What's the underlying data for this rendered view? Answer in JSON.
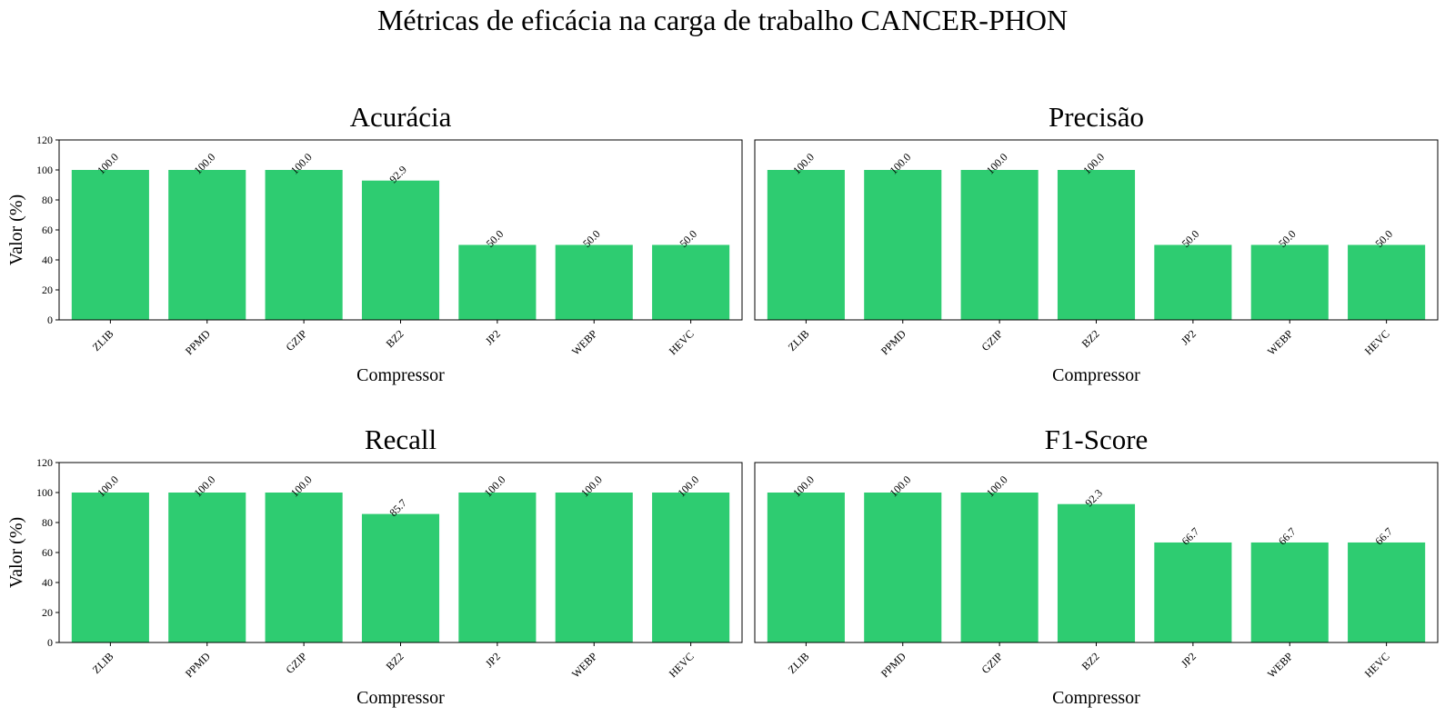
{
  "suptitle": "Métricas de eficácia na carga de trabalho CANCER-PHON",
  "bar_color": "#2ecc71",
  "chart_data": [
    {
      "type": "bar",
      "title": "Acurácia",
      "xlabel": "Compressor",
      "ylabel": "Valor (%)",
      "ylim": [
        0,
        120
      ],
      "yticks": [
        0,
        20,
        40,
        60,
        80,
        100,
        120
      ],
      "categories": [
        "ZLIB",
        "PPMD",
        "GZIP",
        "BZ2",
        "JP2",
        "WEBP",
        "HEVC"
      ],
      "values": [
        100.0,
        100.0,
        100.0,
        92.9,
        50.0,
        50.0,
        50.0
      ],
      "labels": [
        "100.0",
        "100.0",
        "100.0",
        "92.9",
        "50.0",
        "50.0",
        "50.0"
      ]
    },
    {
      "type": "bar",
      "title": "Precisão",
      "xlabel": "Compressor",
      "ylabel": "",
      "ylim": [
        0,
        120
      ],
      "yticks": [],
      "categories": [
        "ZLIB",
        "PPMD",
        "GZIP",
        "BZ2",
        "JP2",
        "WEBP",
        "HEVC"
      ],
      "values": [
        100.0,
        100.0,
        100.0,
        100.0,
        50.0,
        50.0,
        50.0
      ],
      "labels": [
        "100.0",
        "100.0",
        "100.0",
        "100.0",
        "50.0",
        "50.0",
        "50.0"
      ]
    },
    {
      "type": "bar",
      "title": "Recall",
      "xlabel": "Compressor",
      "ylabel": "Valor (%)",
      "ylim": [
        0,
        120
      ],
      "yticks": [
        0,
        20,
        40,
        60,
        80,
        100,
        120
      ],
      "categories": [
        "ZLIB",
        "PPMD",
        "GZIP",
        "BZ2",
        "JP2",
        "WEBP",
        "HEVC"
      ],
      "values": [
        100.0,
        100.0,
        100.0,
        85.7,
        100.0,
        100.0,
        100.0
      ],
      "labels": [
        "100.0",
        "100.0",
        "100.0",
        "85.7",
        "100.0",
        "100.0",
        "100.0"
      ]
    },
    {
      "type": "bar",
      "title": "F1-Score",
      "xlabel": "Compressor",
      "ylabel": "",
      "ylim": [
        0,
        120
      ],
      "yticks": [],
      "categories": [
        "ZLIB",
        "PPMD",
        "GZIP",
        "BZ2",
        "JP2",
        "WEBP",
        "HEVC"
      ],
      "values": [
        100.0,
        100.0,
        100.0,
        92.3,
        66.7,
        66.7,
        66.7
      ],
      "labels": [
        "100.0",
        "100.0",
        "100.0",
        "92.3",
        "66.7",
        "66.7",
        "66.7"
      ]
    }
  ]
}
